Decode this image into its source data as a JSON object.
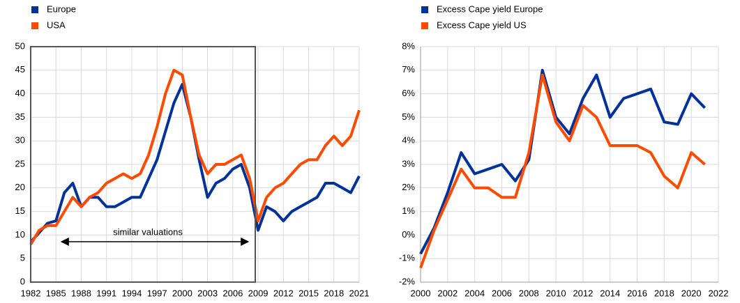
{
  "chart_data": [
    {
      "type": "line",
      "annotation": "similar valuations",
      "x": [
        1982,
        1983,
        1984,
        1985,
        1986,
        1987,
        1988,
        1989,
        1990,
        1991,
        1992,
        1993,
        1994,
        1995,
        1996,
        1997,
        1998,
        1999,
        2000,
        2001,
        2002,
        2003,
        2004,
        2005,
        2006,
        2007,
        2008,
        2009,
        2010,
        2011,
        2012,
        2013,
        2014,
        2015,
        2016,
        2017,
        2018,
        2019,
        2020,
        2021
      ],
      "series": [
        {
          "name": "Europe",
          "color": "#003299",
          "values": [
            8.5,
            10.5,
            12.5,
            13,
            19,
            21,
            16,
            18,
            18,
            16,
            16,
            17,
            18,
            18,
            22,
            26,
            32,
            38,
            42,
            35,
            26,
            18,
            21,
            22,
            24,
            25,
            20,
            11,
            16,
            15,
            13,
            15,
            16,
            17,
            18,
            21,
            21,
            20,
            19,
            22.5
          ]
        },
        {
          "name": "USA",
          "color": "#ff4b00",
          "values": [
            8,
            11,
            12,
            12,
            15,
            18,
            16,
            18,
            19,
            21,
            22,
            23,
            22,
            23,
            27,
            33,
            40,
            45,
            44,
            35,
            27,
            23,
            25,
            25,
            26,
            27,
            22,
            13,
            18,
            20,
            21,
            23,
            25,
            26,
            26,
            29,
            31,
            29,
            31,
            36.5
          ]
        }
      ],
      "xlim": [
        1982,
        2021
      ],
      "xticks": [
        1982,
        1985,
        1988,
        1991,
        1994,
        1997,
        2000,
        2003,
        2006,
        2009,
        2012,
        2015,
        2018,
        2021
      ],
      "ylim": [
        0,
        50
      ],
      "yticks": [
        0,
        5,
        10,
        15,
        20,
        25,
        30,
        35,
        40,
        45,
        50
      ],
      "grid": true
    },
    {
      "type": "line",
      "x": [
        2000,
        2001,
        2002,
        2003,
        2004,
        2005,
        2006,
        2007,
        2008,
        2009,
        2010,
        2011,
        2012,
        2013,
        2014,
        2015,
        2016,
        2017,
        2018,
        2019,
        2020,
        2021
      ],
      "series": [
        {
          "name": "Excess Cape yield Europe",
          "color": "#003299",
          "values": [
            -0.8,
            0.3,
            1.8,
            3.5,
            2.6,
            2.8,
            3.0,
            2.3,
            3.2,
            7.0,
            5.0,
            4.3,
            5.8,
            6.8,
            5.0,
            5.8,
            6.0,
            6.2,
            4.8,
            4.7,
            6.0,
            5.4
          ]
        },
        {
          "name": "Excess Cape yield US",
          "color": "#ff4b00",
          "values": [
            -1.4,
            0.2,
            1.5,
            2.8,
            2.0,
            2.0,
            1.6,
            1.6,
            3.5,
            6.8,
            4.8,
            4.0,
            5.5,
            5.0,
            3.8,
            3.8,
            3.8,
            3.5,
            2.5,
            2.0,
            3.5,
            3.0
          ]
        }
      ],
      "xlim": [
        2000,
        2022
      ],
      "xticks": [
        2000,
        2002,
        2004,
        2006,
        2008,
        2010,
        2012,
        2014,
        2016,
        2018,
        2020,
        2022
      ],
      "ylim": [
        -2,
        8
      ],
      "yticks": [
        {
          "value": -2,
          "label": "-2%"
        },
        {
          "value": -1,
          "label": "-1%"
        },
        {
          "value": 0,
          "label": "0%"
        },
        {
          "value": 1,
          "label": "1%"
        },
        {
          "value": 2,
          "label": "2%"
        },
        {
          "value": 3,
          "label": "3%"
        },
        {
          "value": 4,
          "label": "4%"
        },
        {
          "value": 5,
          "label": "5%"
        },
        {
          "value": 6,
          "label": "6%"
        },
        {
          "value": 7,
          "label": "7%"
        },
        {
          "value": 8,
          "label": "8%"
        }
      ],
      "grid": true
    }
  ]
}
